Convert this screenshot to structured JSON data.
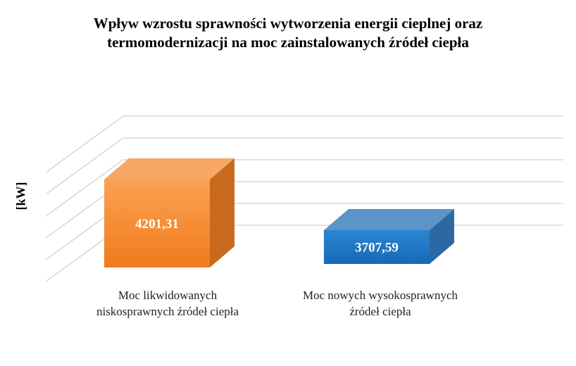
{
  "chart_data": {
    "type": "bar3d",
    "title": "Wpływ wzrostu sprawności wytworzenia energii cieplnej oraz termomodernizacji na  moc zainstalowanych źródeł  ciepła",
    "ylabel": "[kW]",
    "categories": [
      "Moc likwidowanych niskosprawnych źródeł ciepła",
      "Moc nowych wysokosprawnych źródeł ciepła"
    ],
    "values": [
      4201.31,
      3707.59
    ],
    "value_labels": [
      "4201,31",
      "3707,59"
    ],
    "colors": [
      "#f58a2e",
      "#1f77c4"
    ],
    "ylim": [
      3400,
      4400
    ],
    "yticks": [
      3400,
      3600,
      3800,
      4000,
      4200,
      4400
    ],
    "grid": true
  }
}
